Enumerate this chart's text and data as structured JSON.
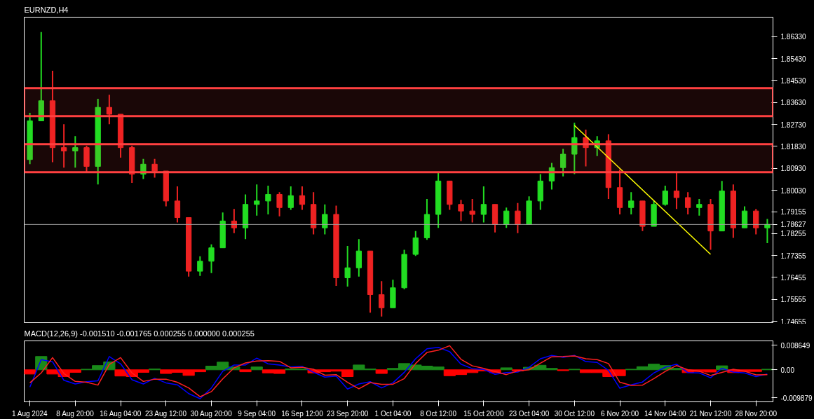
{
  "chart_data": [
    {
      "type": "candlestick",
      "title": "EURNZD,H4",
      "categories": [
        "1 Aug 2024",
        null,
        null,
        null,
        "8 Aug 20:00",
        null,
        null,
        null,
        "16 Aug 04:00",
        null,
        null,
        null,
        "23 Aug 12:00",
        null,
        null,
        null,
        "30 Aug 20:00",
        null,
        null,
        null,
        "9 Sep 04:00",
        null,
        null,
        null,
        "16 Sep 12:00",
        null,
        null,
        null,
        "23 Sep 20:00",
        null,
        null,
        null,
        "1 Oct 04:00",
        null,
        null,
        null,
        "8 Oct 12:00",
        null,
        null,
        null,
        "15 Oct 20:00",
        null,
        null,
        null,
        "23 Oct 04:00",
        null,
        null,
        null,
        "30 Oct 12:00",
        null,
        null,
        null,
        "6 Nov 20:00",
        null,
        null,
        null,
        "14 Nov 04:00",
        null,
        null,
        null,
        "21 Nov 12:00",
        null,
        null,
        null,
        "28 Nov 20:00",
        null
      ],
      "ohlc": [
        [
          1.8129,
          1.8321,
          1.811,
          1.8288
        ],
        [
          1.8288,
          1.8652,
          1.8288,
          1.837
        ],
        [
          1.837,
          1.8493,
          1.8118,
          1.8178
        ],
        [
          1.8178,
          1.8274,
          1.8096,
          1.8164
        ],
        [
          1.8164,
          1.8225,
          1.8096,
          1.8178
        ],
        [
          1.8178,
          1.8186,
          1.8077,
          1.8101
        ],
        [
          1.8101,
          1.8378,
          1.8027,
          1.8343
        ],
        [
          1.8343,
          1.8395,
          1.8274,
          1.8315
        ],
        [
          1.8315,
          1.8315,
          1.8137,
          1.8178
        ],
        [
          1.8178,
          1.8186,
          1.8033,
          1.8069
        ],
        [
          1.8069,
          1.8132,
          1.8049,
          1.811
        ],
        [
          1.811,
          1.8132,
          1.8055,
          1.8082
        ],
        [
          1.8082,
          1.8082,
          1.7937,
          1.7959
        ],
        [
          1.7959,
          1.8019,
          1.7871,
          1.7891
        ],
        [
          1.7891,
          1.7891,
          1.7649,
          1.7671
        ],
        [
          1.7671,
          1.7732,
          1.7652,
          1.7712
        ],
        [
          1.7712,
          1.7781,
          1.7663,
          1.7767
        ],
        [
          1.7767,
          1.7912,
          1.7767,
          1.7877
        ],
        [
          1.7877,
          1.7926,
          1.7827,
          1.7849
        ],
        [
          1.7849,
          1.7986,
          1.7803,
          1.7945
        ],
        [
          1.7945,
          1.8027,
          1.7899,
          1.7959
        ],
        [
          1.7959,
          1.8022,
          1.7904,
          1.7986
        ],
        [
          1.7986,
          1.7995,
          1.7896,
          1.7932
        ],
        [
          1.7932,
          1.8019,
          1.7923,
          1.7981
        ],
        [
          1.7981,
          1.8019,
          1.7923,
          1.7945
        ],
        [
          1.7945,
          1.7995,
          1.7822,
          1.7849
        ],
        [
          1.7849,
          1.7945,
          1.7822,
          1.7904
        ],
        [
          1.7904,
          1.794,
          1.7611,
          1.7644
        ],
        [
          1.7644,
          1.7775,
          1.7608,
          1.7685
        ],
        [
          1.7685,
          1.7803,
          1.7649,
          1.7754
        ],
        [
          1.7754,
          1.7754,
          1.7501,
          1.7575
        ],
        [
          1.7575,
          1.763,
          1.7485,
          1.7521
        ],
        [
          1.7521,
          1.7636,
          1.7521,
          1.7603
        ],
        [
          1.7603,
          1.7759,
          1.7597,
          1.774
        ],
        [
          1.774,
          1.7836,
          1.7734,
          1.7808
        ],
        [
          1.7808,
          1.7967,
          1.78,
          1.7904
        ],
        [
          1.7904,
          1.8074,
          1.7849,
          1.8041
        ],
        [
          1.8041,
          1.8041,
          1.7923,
          1.7945
        ],
        [
          1.7945,
          1.7964,
          1.7877,
          1.7918
        ],
        [
          1.7918,
          1.7967,
          1.7871,
          1.7904
        ],
        [
          1.7904,
          1.8019,
          1.7871,
          1.7945
        ],
        [
          1.7945,
          1.7945,
          1.783,
          1.7863
        ],
        [
          1.7863,
          1.7932,
          1.7849,
          1.7918
        ],
        [
          1.7918,
          1.7951,
          1.7827,
          1.7863
        ],
        [
          1.7863,
          1.7978,
          1.7863,
          1.7959
        ],
        [
          1.7959,
          1.8069,
          1.7923,
          1.8041
        ],
        [
          1.8041,
          1.8115,
          1.8006,
          1.8096
        ],
        [
          1.8096,
          1.8173,
          1.806,
          1.8151
        ],
        [
          1.8151,
          1.828,
          1.8069,
          1.8219
        ],
        [
          1.8219,
          1.8252,
          1.8101,
          1.8178
        ],
        [
          1.8178,
          1.8225,
          1.8143,
          1.8206
        ],
        [
          1.8206,
          1.8233,
          1.7967,
          1.8014
        ],
        [
          1.8014,
          1.8088,
          1.7904,
          1.7932
        ],
        [
          1.7932,
          1.7995,
          1.7904,
          1.7959
        ],
        [
          1.7959,
          1.7959,
          1.7836,
          1.7855
        ],
        [
          1.7855,
          1.7959,
          1.7855,
          1.7945
        ],
        [
          1.7945,
          1.8022,
          1.794,
          1.8
        ],
        [
          1.8,
          1.8074,
          1.7926,
          1.7973
        ],
        [
          1.7973,
          1.7995,
          1.7904,
          1.7932
        ],
        [
          1.7932,
          1.7967,
          1.7899,
          1.7945
        ],
        [
          1.7945,
          1.7967,
          1.7759,
          1.7836
        ],
        [
          1.7836,
          1.8041,
          1.7836,
          1.8
        ],
        [
          1.8,
          1.8027,
          1.7808,
          1.7849
        ],
        [
          1.7849,
          1.7937,
          1.7849,
          1.7918
        ],
        [
          1.7918,
          1.7926,
          1.7822,
          1.7849
        ],
        [
          1.7849,
          1.7885,
          1.7786,
          1.7863
        ]
      ],
      "colors": [
        "#22dd22",
        "#22dd22",
        "#ee2222",
        "#ee2222",
        "#22dd22",
        "#ee2222",
        "#22dd22",
        "#ee2222",
        "#ee2222",
        "#ee2222",
        "#22dd22",
        "#ee2222",
        "#ee2222",
        "#ee2222",
        "#ee2222",
        "#22dd22",
        "#22dd22",
        "#22dd22",
        "#ee2222",
        "#22dd22",
        "#22dd22",
        "#22dd22",
        "#ee2222",
        "#22dd22",
        "#ee2222",
        "#ee2222",
        "#22dd22",
        "#ee2222",
        "#22dd22",
        "#22dd22",
        "#ee2222",
        "#ee2222",
        "#22dd22",
        "#22dd22",
        "#22dd22",
        "#22dd22",
        "#22dd22",
        "#ee2222",
        "#ee2222",
        "#ee2222",
        "#22dd22",
        "#ee2222",
        "#22dd22",
        "#ee2222",
        "#22dd22",
        "#22dd22",
        "#22dd22",
        "#22dd22",
        "#22dd22",
        "#ee2222",
        "#22dd22",
        "#ee2222",
        "#ee2222",
        "#22dd22",
        "#ee2222",
        "#22dd22",
        "#22dd22",
        "#ee2222",
        "#ee2222",
        "#22dd22",
        "#ee2222",
        "#22dd22",
        "#ee2222",
        "#22dd22",
        "#ee2222",
        "#22dd22"
      ],
      "series": [
        {
          "type": "line",
          "color": "#ffff00",
          "x": [
            "30 Oct 12:00",
            "21 Nov 12:00"
          ],
          "values": [
            1.8269,
            1.774
          ]
        }
      ],
      "ylim": [
        1.746,
        1.8713
      ],
      "yticks": [
        {
          "value": 1.8633,
          "label": "1.86330"
        },
        {
          "value": 1.8543,
          "label": "1.85430"
        },
        {
          "value": 1.8453,
          "label": "1.84530"
        },
        {
          "value": 1.8363,
          "label": "1.83630"
        },
        {
          "value": 1.8273,
          "label": "1.82730"
        },
        {
          "value": 1.8183,
          "label": "1.81830"
        },
        {
          "value": 1.8093,
          "label": "1.80930"
        },
        {
          "value": 1.8003,
          "label": "1.80030"
        },
        {
          "value": 1.79155,
          "label": "1.79155"
        },
        {
          "value": 1.78255,
          "label": "1.78255"
        },
        {
          "value": 1.77355,
          "label": "1.77355"
        },
        {
          "value": 1.76455,
          "label": "1.76455"
        },
        {
          "value": 1.75555,
          "label": "1.75555"
        },
        {
          "value": 1.74655,
          "label": "1.74655"
        }
      ],
      "tick_labels": "y",
      "ref_lines": [
        {
          "axis": "y",
          "value": 1.78627,
          "label": "1.78627",
          "color": "#a0a0a0"
        }
      ],
      "bands": [
        {
          "axis": "y",
          "from": 1.8307,
          "to": 1.8422,
          "color": "#ff4040"
        },
        {
          "axis": "y",
          "from": 1.8077,
          "to": 1.8192,
          "color": "#ff4040"
        }
      ]
    },
    {
      "type": "line",
      "title": "MACD(12,26,9) -0.001510 -0.001765 0.000255 0.000000 0.000255",
      "categories": [
        "1 Aug 2024",
        null,
        null,
        null,
        "8 Aug 20:00",
        null,
        null,
        null,
        "16 Aug 04:00",
        null,
        null,
        null,
        "23 Aug 12:00",
        null,
        null,
        null,
        "30 Aug 20:00",
        null,
        null,
        null,
        "9 Sep 04:00",
        null,
        null,
        null,
        "16 Sep 12:00",
        null,
        null,
        null,
        "23 Sep 20:00",
        null,
        null,
        null,
        "1 Oct 04:00",
        null,
        null,
        null,
        "8 Oct 12:00",
        null,
        null,
        null,
        "15 Oct 20:00",
        null,
        null,
        null,
        "23 Oct 04:00",
        null,
        null,
        null,
        "30 Oct 12:00",
        null,
        null,
        null,
        "6 Nov 20:00",
        null,
        null,
        null,
        "14 Nov 04:00",
        null,
        null,
        null,
        "21 Nov 12:00",
        null,
        null,
        null,
        "28 Nov 20:00",
        null
      ],
      "series": [
        {
          "type": "bar",
          "colors": [
            "#ff0000",
            "#1a8a1a",
            "#ff0000",
            "#ff0000",
            "#ff0000",
            "#1a8a1a",
            "#1a8a1a",
            "#1a8a1a",
            "#ff0000",
            "#ff0000",
            "#ff0000",
            "#1a8a1a",
            "#ff0000",
            "#ff0000",
            "#ff0000",
            "#ff0000",
            "#1a8a1a",
            "#1a8a1a",
            "#1a8a1a",
            "#ff0000",
            "#1a8a1a",
            "#ff0000",
            "#ff0000",
            "#1a8a1a",
            "#1a8a1a",
            "#ff0000",
            "#ff0000",
            "#ff0000",
            "#ff0000",
            "#1a8a1a",
            "#1a8a1a",
            "#ff0000",
            "#1a8a1a",
            "#1a8a1a",
            "#1a8a1a",
            "#1a8a1a",
            "#1a8a1a",
            "#ff0000",
            "#ff0000",
            "#ff0000",
            "#ff0000",
            "#ff0000",
            "#1a8a1a",
            "#ff0000",
            "#1a8a1a",
            "#1a8a1a",
            "#1a8a1a",
            "#ff0000",
            "#1a8a1a",
            "#ff0000",
            "#ff0000",
            "#ff0000",
            "#ff0000",
            "#1a8a1a",
            "#1a8a1a",
            "#1a8a1a",
            "#1a8a1a",
            "#1a8a1a",
            "#ff0000",
            "#ff0000",
            "#ff0000",
            "#1a8a1a",
            "#ff0000",
            "#ff0000",
            "#ff0000",
            "#1a8a1a"
          ],
          "values": [
            -0.0015,
            0.0047,
            -0.0015,
            -0.0024,
            -0.0009,
            0.0002,
            0.0015,
            0.0028,
            -0.0022,
            -0.0024,
            -0.0009,
            0.0003,
            -0.0013,
            -0.0009,
            -0.002,
            -0.0007,
            0.0013,
            0.0027,
            0.001,
            -0.0007,
            0.001,
            -0.0011,
            -0.0013,
            0.0003,
            0.0003,
            -0.0011,
            -0.0007,
            -0.0005,
            -0.0024,
            0.0017,
            0.0003,
            -0.0013,
            0.0005,
            0.0022,
            0.0017,
            0.0013,
            0.001,
            -0.0021,
            -0.0017,
            -0.001,
            -0.0004,
            -0.001,
            0.0007,
            -0.0004,
            0.0009,
            0.0016,
            0.0005,
            -0.0003,
            0.0002,
            -0.001,
            -0.001,
            -0.0024,
            -0.0021,
            0.0002,
            0.0011,
            0.002,
            0.0015,
            0.0005,
            -0.001,
            -0.0006,
            -0.0008,
            0.0014,
            -0.001,
            -0.0006,
            -0.0006,
            0.0002
          ]
        },
        {
          "type": "line",
          "color": "#0000ff",
          "values": [
            -0.0061,
            0.0036,
            0.0028,
            -0.0037,
            -0.005,
            -0.0042,
            -0.0039,
            0.0047,
            0.0021,
            -0.0035,
            -0.005,
            -0.003,
            -0.0046,
            -0.0053,
            -0.0084,
            -0.0102,
            -0.0064,
            -0.0005,
            0.0017,
            0.0017,
            0.0041,
            0.0021,
            0.0017,
            0.001,
            0.0012,
            -0.0009,
            -0.0026,
            -0.0022,
            -0.0068,
            -0.005,
            -0.0042,
            -0.0064,
            -0.0046,
            -0.0009,
            0.0039,
            0.0074,
            0.0079,
            0.0064,
            0.002,
            0.0004,
            0.0001,
            -0.0016,
            -0.001,
            -0.0008,
            0.0009,
            0.0039,
            0.0051,
            0.0044,
            0.0051,
            0.0029,
            0.0026,
            -0.0002,
            -0.0065,
            -0.0053,
            -0.0043,
            -0.0011,
            0.0009,
            0.002,
            -0.001,
            -0.0011,
            -0.0028,
            0.0005,
            -0.0008,
            -0.0011,
            -0.0024,
            -0.0015
          ]
        },
        {
          "type": "line",
          "color": "#ff2020",
          "values": [
            -0.0046,
            -0.0011,
            0.0043,
            -0.0013,
            -0.0041,
            -0.0044,
            -0.0054,
            0.0019,
            0.0043,
            -0.0011,
            -0.0041,
            -0.0033,
            -0.0033,
            -0.0044,
            -0.0064,
            -0.0095,
            -0.0077,
            -0.0032,
            0.0007,
            0.0024,
            0.0031,
            0.0032,
            0.003,
            0.0007,
            0.0009,
            0.0002,
            -0.0019,
            -0.0017,
            -0.0044,
            -0.0067,
            -0.0045,
            -0.0051,
            -0.0051,
            -0.0031,
            0.0022,
            0.0061,
            0.0069,
            0.0085,
            0.0037,
            0.0014,
            0.0005,
            -0.0006,
            -0.0017,
            -0.0004,
            0.0,
            0.0023,
            0.0046,
            0.0047,
            0.0049,
            0.0039,
            0.0036,
            0.0022,
            -0.0044,
            -0.0055,
            -0.0054,
            -0.0031,
            -0.0006,
            0.0015,
            0.0,
            -0.0005,
            -0.002,
            -0.0009,
            0.0002,
            -0.0005,
            -0.0018,
            -0.0017
          ]
        }
      ],
      "ylim": [
        -0.0113,
        0.0102
      ],
      "yticks": [
        {
          "value": 0.008649,
          "label": "0.008649"
        },
        {
          "value": 0,
          "label": "0.00"
        },
        {
          "value": -0.009879,
          "label": "-0.009879"
        }
      ]
    }
  ]
}
